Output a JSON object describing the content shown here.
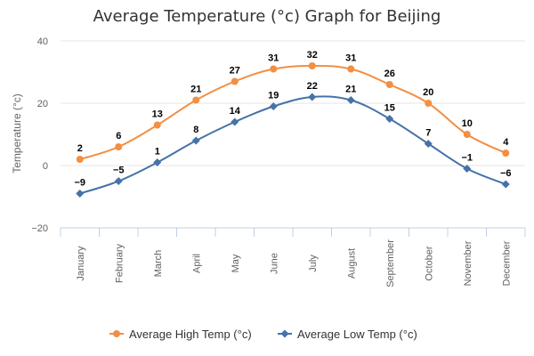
{
  "chart_data": {
    "type": "line",
    "title": "Average Temperature (°c) Graph for Beijing",
    "xlabel": "",
    "ylabel": "Temperature (°c)",
    "ylim": [
      -20,
      40
    ],
    "yticks": [
      "40",
      "20",
      "0",
      "−20"
    ],
    "grid": true,
    "legend_position": "bottom",
    "categories": [
      "January",
      "February",
      "March",
      "April",
      "May",
      "June",
      "July",
      "August",
      "September",
      "October",
      "November",
      "December"
    ],
    "series": [
      {
        "name": "Average High Temp (°c)",
        "color": "#f28f43",
        "marker": "circle",
        "values": [
          2,
          6,
          13,
          21,
          27,
          31,
          32,
          31,
          26,
          20,
          10,
          4
        ],
        "labels": [
          "2",
          "6",
          "13",
          "21",
          "27",
          "31",
          "32",
          "31",
          "26",
          "20",
          "10",
          "4"
        ]
      },
      {
        "name": "Average Low Temp (°c)",
        "color": "#4572a7",
        "marker": "diamond",
        "values": [
          -9,
          -5,
          1,
          8,
          14,
          19,
          22,
          21,
          15,
          7,
          -1,
          -6
        ],
        "labels": [
          "−9",
          "−5",
          "1",
          "8",
          "14",
          "19",
          "22",
          "21",
          "15",
          "7",
          "−1",
          "−6"
        ]
      }
    ]
  }
}
